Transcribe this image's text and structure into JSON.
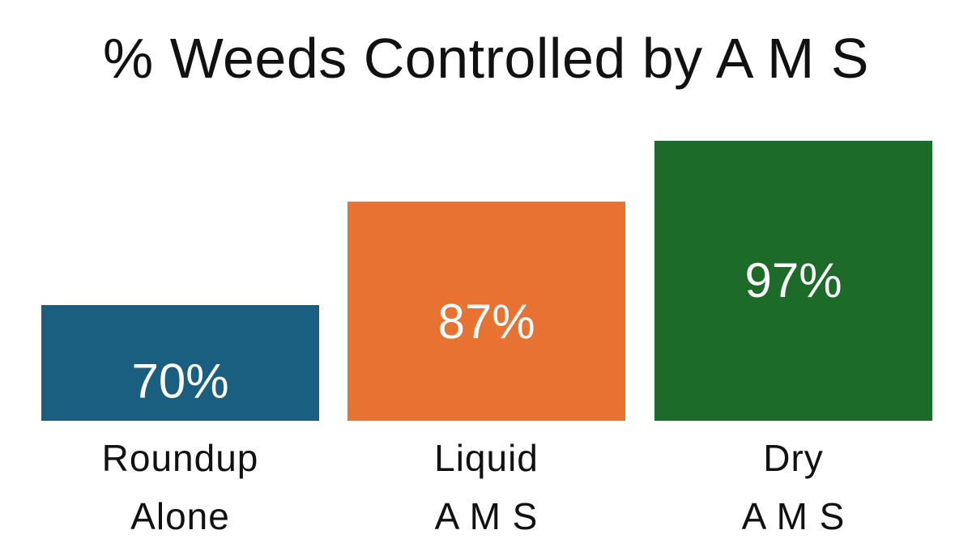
{
  "chart_data": {
    "type": "bar",
    "title": "% Weeds Controlled by A M S",
    "categories": [
      [
        "Roundup",
        "Alone"
      ],
      [
        "Liquid",
        "A M S"
      ],
      [
        "Dry",
        "A M S"
      ]
    ],
    "values": [
      70,
      87,
      97
    ],
    "value_labels": [
      "70%",
      "87%",
      "97%"
    ],
    "colors": [
      "#1a5e80",
      "#e77232",
      "#1c6b28"
    ],
    "xlabel": "",
    "ylabel": "",
    "grid": false,
    "axes_visible": false,
    "legend": "none"
  }
}
